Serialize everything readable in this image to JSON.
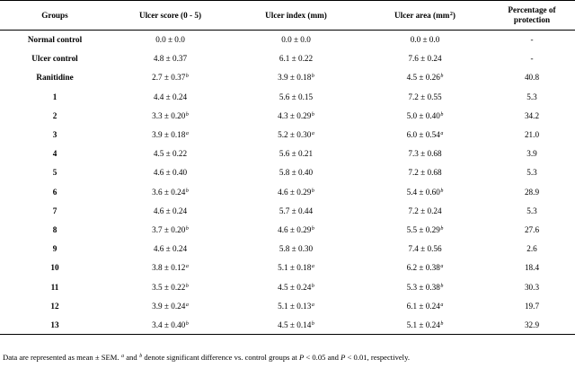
{
  "headers": {
    "groups": "Groups",
    "ulcer_score": "Ulcer score (0 - 5)",
    "ulcer_index": "Ulcer index (mm)",
    "ulcer_area_main": "Ulcer area (mm",
    "ulcer_area_sup": "2",
    "ulcer_area_end": ")",
    "protection": "Percentage of protection"
  },
  "rows": [
    {
      "group": "Normal control",
      "score": "0.0 ± 0.0",
      "score_sig": "",
      "index": "0.0 ± 0.0",
      "index_sig": "",
      "area": "0.0 ± 0.0",
      "area_sig": "",
      "protection": "-"
    },
    {
      "group": "Ulcer control",
      "score": "4.8 ± 0.37",
      "score_sig": "",
      "index": "6.1 ± 0.22",
      "index_sig": "",
      "area": "7.6 ± 0.24",
      "area_sig": "",
      "protection": "-"
    },
    {
      "group": "Ranitidine",
      "score": "2.7 ± 0.37",
      "score_sig": "b",
      "index": "3.9 ± 0.18",
      "index_sig": "b",
      "area": "4.5 ± 0.26",
      "area_sig": "b",
      "protection": "40.8"
    },
    {
      "group": "1",
      "score": "4.4 ± 0.24",
      "score_sig": "",
      "index": "5.6 ± 0.15",
      "index_sig": "",
      "area": "7.2 ± 0.55",
      "area_sig": "",
      "protection": "5.3"
    },
    {
      "group": "2",
      "score": "3.3 ± 0.20",
      "score_sig": "b",
      "index": "4.3 ± 0.29",
      "index_sig": "b",
      "area": "5.0 ± 0.40",
      "area_sig": "b",
      "protection": "34.2"
    },
    {
      "group": "3",
      "score": "3.9 ± 0.18",
      "score_sig": "a",
      "index": "5.2 ± 0.30",
      "index_sig": "a",
      "area": "6.0 ± 0.54",
      "area_sig": "a",
      "protection": "21.0"
    },
    {
      "group": "4",
      "score": "4.5 ± 0.22",
      "score_sig": "",
      "index": "5.6 ± 0.21",
      "index_sig": "",
      "area": "7.3 ± 0.68",
      "area_sig": "",
      "protection": "3.9"
    },
    {
      "group": "5",
      "score": "4.6 ± 0.40",
      "score_sig": "",
      "index": "5.8 ± 0.40",
      "index_sig": "",
      "area": "7.2 ± 0.68",
      "area_sig": "",
      "protection": "5.3"
    },
    {
      "group": "6",
      "score": "3.6 ± 0.24",
      "score_sig": "b",
      "index": "4.6 ± 0.29",
      "index_sig": "b",
      "area": "5.4 ± 0.60",
      "area_sig": "b",
      "protection": "28.9"
    },
    {
      "group": "7",
      "score": "4.6 ± 0.24",
      "score_sig": "",
      "index": "5.7 ± 0.44",
      "index_sig": "",
      "area": "7.2 ± 0.24",
      "area_sig": "",
      "protection": "5.3"
    },
    {
      "group": "8",
      "score": "3.7 ± 0.20",
      "score_sig": "b",
      "index": "4.6 ± 0.29",
      "index_sig": "b",
      "area": "5.5 ± 0.29",
      "area_sig": "b",
      "protection": "27.6"
    },
    {
      "group": "9",
      "score": "4.6 ± 0.24",
      "score_sig": "",
      "index": "5.8 ± 0.30",
      "index_sig": "",
      "area": "7.4 ± 0.56",
      "area_sig": "",
      "protection": "2.6"
    },
    {
      "group": "10",
      "score": "3.8 ± 0.12",
      "score_sig": "a",
      "index": "5.1 ± 0.18",
      "index_sig": "a",
      "area": "6.2 ± 0.38",
      "area_sig": "a",
      "protection": "18.4"
    },
    {
      "group": "11",
      "score": "3.5 ± 0.22",
      "score_sig": "b",
      "index": "4.5 ± 0.24",
      "index_sig": "b",
      "area": "5.3 ± 0.38",
      "area_sig": "b",
      "protection": "30.3"
    },
    {
      "group": "12",
      "score": "3.9 ± 0.24",
      "score_sig": "a",
      "index": "5.1 ± 0.13",
      "index_sig": "a",
      "area": "6.1 ± 0.24",
      "area_sig": "a",
      "protection": "19.7"
    },
    {
      "group": "13",
      "score": "3.4 ± 0.40",
      "score_sig": "b",
      "index": "4.5 ± 0.14",
      "index_sig": "b",
      "area": "5.1 ± 0.24",
      "area_sig": "b",
      "protection": "32.9"
    }
  ],
  "footnote": {
    "p1": "Data are represented as mean ± SEM. ",
    "sup_a": "a",
    "p2": " and ",
    "sup_b": "b",
    "p3": " denote significant difference vs. control groups at ",
    "p_sym1": "P",
    "p4": " < 0.05 and ",
    "p_sym2": "P",
    "p5": " < 0.01, respectively."
  }
}
